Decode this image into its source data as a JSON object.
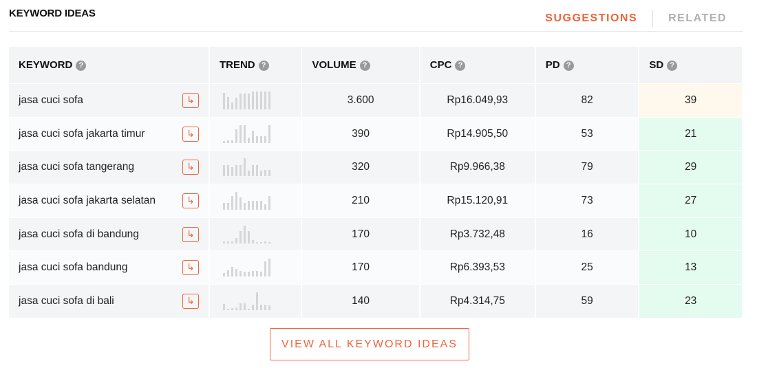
{
  "title": "KEYWORD IDEAS",
  "tabs": [
    {
      "label": "SUGGESTIONS",
      "active": true
    },
    {
      "label": "RELATED",
      "active": false
    }
  ],
  "columns": [
    "KEYWORD",
    "TREND",
    "VOLUME",
    "CPC",
    "PD",
    "SD"
  ],
  "help_icon": "?",
  "go_icon": "↳",
  "colors": {
    "accent": "#f0643c",
    "sd_medium": "#fff8ec",
    "sd_easy": "#e4fbf0"
  },
  "rows": [
    {
      "keyword": "jasa cuci sofa",
      "trend": [
        0.92,
        0.7,
        0.4,
        0.65,
        0.88,
        0.88,
        0.88,
        1,
        1,
        1,
        1,
        1
      ],
      "volume": "3.600",
      "cpc": "Rp16.049,93",
      "pd": "82",
      "sd": "39",
      "sd_color": "#fff8ec"
    },
    {
      "keyword": "jasa cuci sofa jakarta timur",
      "trend": [
        0.12,
        0.15,
        0.15,
        0.75,
        1,
        1,
        0.3,
        0.7,
        0.4,
        0.4,
        0.4,
        1
      ],
      "volume": "390",
      "cpc": "Rp14.905,50",
      "pd": "53",
      "sd": "21",
      "sd_color": "#e4fbf0"
    },
    {
      "keyword": "jasa cuci sofa tangerang",
      "trend": [
        0.62,
        0.62,
        0.5,
        0.62,
        0.62,
        1,
        0.3,
        0.62,
        0.62,
        0.3,
        0.35,
        0.35
      ],
      "volume": "320",
      "cpc": "Rp9.966,38",
      "pd": "79",
      "sd": "29",
      "sd_color": "#e4fbf0"
    },
    {
      "keyword": "jasa cuci sofa jakarta selatan",
      "trend": [
        0.4,
        0.4,
        0.78,
        1,
        0.7,
        0.4,
        0.5,
        0.5,
        0.5,
        0.5,
        0.3,
        0.78
      ],
      "volume": "210",
      "cpc": "Rp15.120,91",
      "pd": "73",
      "sd": "27",
      "sd_color": "#e4fbf0"
    },
    {
      "keyword": "jasa cuci sofa di bandung",
      "trend": [
        0.1,
        0.1,
        0.12,
        0.3,
        0.7,
        1,
        0.7,
        0.2,
        0.08,
        0.08,
        0.1,
        0.08
      ],
      "volume": "170",
      "cpc": "Rp3.732,48",
      "pd": "16",
      "sd": "10",
      "sd_color": "#e4fbf0"
    },
    {
      "keyword": "jasa cuci sofa bandung",
      "trend": [
        0.2,
        0.35,
        0.52,
        0.42,
        0.3,
        0.25,
        0.25,
        0.3,
        0.3,
        0.25,
        0.85,
        1
      ],
      "volume": "170",
      "cpc": "Rp6.393,53",
      "pd": "25",
      "sd": "13",
      "sd_color": "#e4fbf0"
    },
    {
      "keyword": "jasa cuci sofa di bali",
      "trend": [
        0.35,
        0.08,
        0.1,
        0.15,
        0.4,
        0.4,
        0.08,
        0.3,
        1,
        0.3,
        0.3,
        0.25
      ],
      "volume": "140",
      "cpc": "Rp4.314,75",
      "pd": "59",
      "sd": "23",
      "sd_color": "#e4fbf0"
    }
  ],
  "view_all_label": "VIEW ALL KEYWORD IDEAS"
}
